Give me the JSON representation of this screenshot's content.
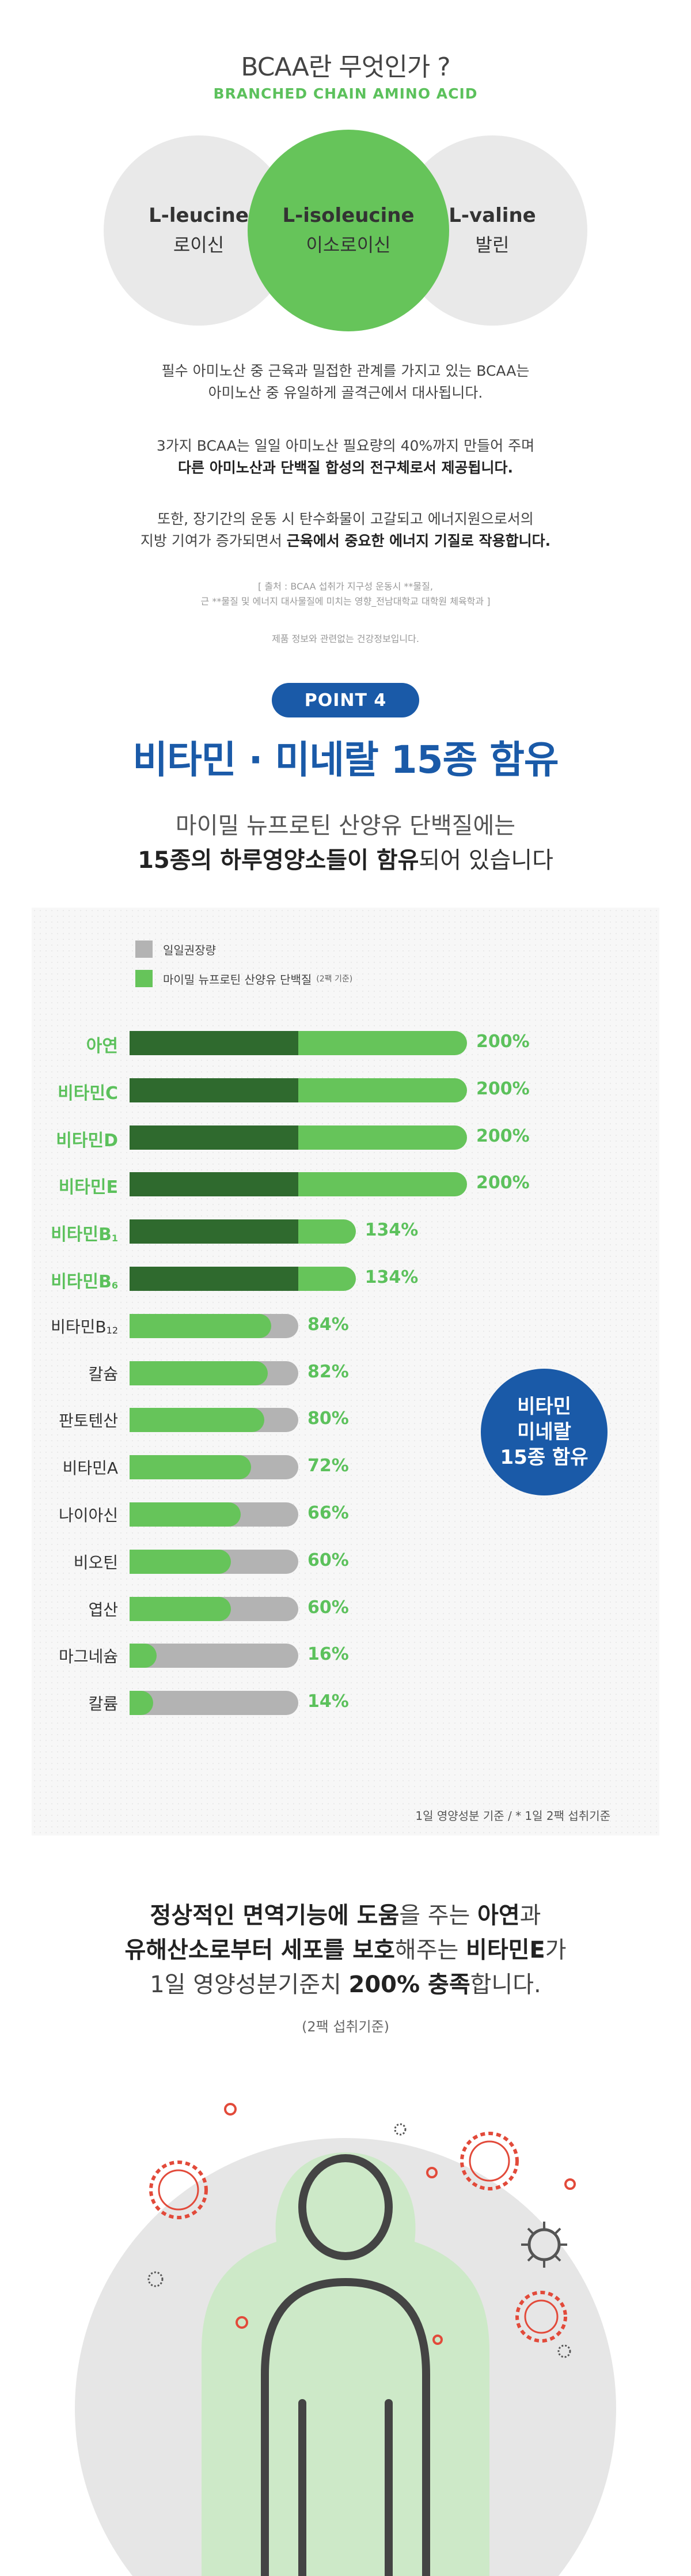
{
  "bcaa": {
    "title": "BCAA란 무엇인가 ?",
    "subtitle": "BRANCHED CHAIN AMINO ACID",
    "circles": [
      {
        "en": "L-leucine",
        "ko": "로이신"
      },
      {
        "en": "L-isoleucine",
        "ko": "이소로이신"
      },
      {
        "en": "L-valine",
        "ko": "발린"
      }
    ],
    "para1_line1": "필수 아미노산 중 근육과 밀접한 관계를 가지고 있는 BCAA는",
    "para1_line2": "아미노산 중 유일하게 골격근에서 대사됩니다.",
    "para2_line1": "3가지 BCAA는 일일 아미노산 필요량의 40%까지 만들어 주며",
    "para2_line2": "다른 아미노산과 단백질 합성의 전구체로서 제공됩니다.",
    "para3_line1": "또한, 장기간의 운동 시 탄수화물이 고갈되고 에너지원으로서의",
    "para3_line2_pre": "지방 기여가 증가되면서 ",
    "para3_line2_bold": "근육에서 중요한 에너지 기질로 작용합니다.",
    "source_line1": "[ 출처 : BCAA 섭취가 지구성 운동시 **물질,",
    "source_line2": "근 **물질 및 에너지 대사물질에 미치는 영향_전남대학교 대학원 체육학과 ]",
    "note": "제품 정보와 관련없는 건강정보입니다."
  },
  "point": {
    "badge": "POINT 4",
    "title": "비타민 · 미네랄 15종 함유",
    "intro_line1": "마이밀 뉴프로틴 산양유 단백질에는",
    "intro_line2_bold": "15종의 하루영양소들이 함유",
    "intro_line2_rest": "되어 있습니다"
  },
  "legend": {
    "recommended": "일일권장량",
    "product": "마이밀 뉴프로틴 산양유 단백질",
    "product_note": "(2팩 기준)"
  },
  "chart_data": {
    "type": "bar",
    "categories": [
      "아연",
      "비타민C",
      "비타민D",
      "비타민E",
      "비타민B1",
      "비타민B6",
      "비타민B12",
      "칼슘",
      "판토텐산",
      "비타민A",
      "나이아신",
      "비오틴",
      "엽산",
      "마그네슘",
      "칼륨"
    ],
    "series": [
      {
        "name": "일일권장량",
        "values": [
          100,
          100,
          100,
          100,
          100,
          100,
          100,
          100,
          100,
          100,
          100,
          100,
          100,
          100,
          100
        ]
      },
      {
        "name": "마이밀 뉴프로틴 산양유 단백질",
        "values": [
          200,
          200,
          200,
          200,
          134,
          134,
          84,
          82,
          80,
          72,
          66,
          60,
          60,
          16,
          14
        ]
      }
    ],
    "value_labels": [
      "200%",
      "200%",
      "200%",
      "200%",
      "134%",
      "134%",
      "84%",
      "82%",
      "80%",
      "72%",
      "66%",
      "60%",
      "60%",
      "16%",
      "14%"
    ],
    "unit": "%"
  },
  "chart_labels": [
    {
      "main": "아연",
      "sub": ""
    },
    {
      "main": "비타민C",
      "sub": ""
    },
    {
      "main": "비타민D",
      "sub": ""
    },
    {
      "main": "비타민E",
      "sub": ""
    },
    {
      "main": "비타민B",
      "sub": "1"
    },
    {
      "main": "비타민B",
      "sub": "6"
    },
    {
      "main": "비타민B",
      "sub": "12"
    },
    {
      "main": "칼슘",
      "sub": ""
    },
    {
      "main": "판토텐산",
      "sub": ""
    },
    {
      "main": "비타민A",
      "sub": ""
    },
    {
      "main": "나이아신",
      "sub": ""
    },
    {
      "main": "비오틴",
      "sub": ""
    },
    {
      "main": "엽산",
      "sub": ""
    },
    {
      "main": "마그네슘",
      "sub": ""
    },
    {
      "main": "칼륨",
      "sub": ""
    }
  ],
  "badge": {
    "line1": "비타민",
    "line2": "미네랄",
    "line3": "15종 함유"
  },
  "chart_note": "1일 영양성분 기준 / * 1일 2팩 섭취기준",
  "summary": {
    "l1_b1": "정상적인 면역기능에 도움",
    "l1_t1": "을 주는 ",
    "l1_b2": "아연",
    "l1_t2": "과",
    "l2_b1": "유해산소로부터 세포를 보호",
    "l2_t1": "해주는 ",
    "l2_b2": "비타민E",
    "l2_t2": "가",
    "l3_t1": "1일 영양성분기준치 ",
    "l3_b1": "200% 충족",
    "l3_t2": "합니다.",
    "l4": "(2팩 섭취기준)"
  },
  "colors": {
    "green": "#66c45a",
    "dark_green": "#2f6a2e",
    "gray": "#b3b3b3",
    "blue": "#1a5aa8",
    "virus_red": "#e24a3a"
  }
}
